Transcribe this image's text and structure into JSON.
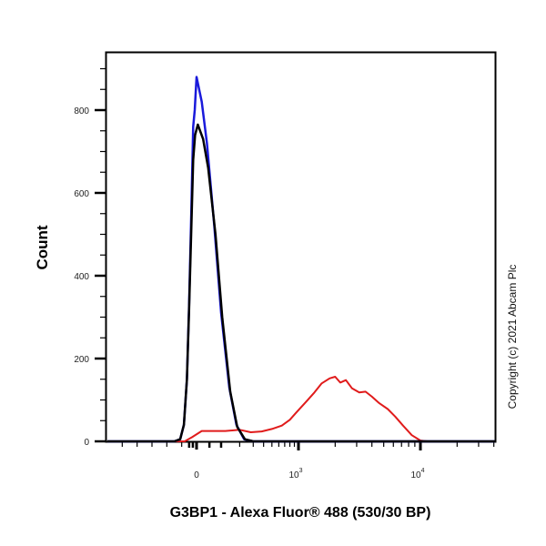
{
  "chart_data": {
    "type": "line",
    "subtype": "flow-cytometry-histogram",
    "title": "",
    "xlabel": "G3BP1 - Alexa Fluor® 488 (530/30 BP)",
    "ylabel": "Count",
    "x_scale": "biexponential",
    "x_tick_labels": [
      "0",
      "10^3",
      "10^4"
    ],
    "y_tick_labels": [
      "0",
      "200",
      "400",
      "600",
      "800"
    ],
    "ylim": [
      0,
      940
    ],
    "grid": false,
    "legend": null,
    "annotation": "Copyright (c) 2021 Abcam Plc",
    "series": [
      {
        "name": "blue-control",
        "color": "#1a1adb",
        "peak_x": "0",
        "peak_count": 880,
        "points": [
          [
            -1200,
            0
          ],
          [
            -300,
            0
          ],
          [
            -220,
            5
          ],
          [
            -170,
            40
          ],
          [
            -130,
            150
          ],
          [
            -100,
            330
          ],
          [
            -70,
            560
          ],
          [
            -45,
            760
          ],
          [
            -25,
            800
          ],
          [
            0,
            880
          ],
          [
            20,
            820
          ],
          [
            40,
            720
          ],
          [
            70,
            520
          ],
          [
            100,
            310
          ],
          [
            140,
            130
          ],
          [
            180,
            40
          ],
          [
            230,
            5
          ],
          [
            300,
            0
          ],
          [
            60000,
            0
          ]
        ]
      },
      {
        "name": "black-control",
        "color": "#000000",
        "peak_x": "0",
        "peak_count": 765,
        "points": [
          [
            -1200,
            0
          ],
          [
            -300,
            0
          ],
          [
            -220,
            5
          ],
          [
            -170,
            40
          ],
          [
            -130,
            150
          ],
          [
            -100,
            320
          ],
          [
            -70,
            520
          ],
          [
            -45,
            680
          ],
          [
            -20,
            740
          ],
          [
            5,
            765
          ],
          [
            25,
            730
          ],
          [
            45,
            660
          ],
          [
            75,
            500
          ],
          [
            105,
            300
          ],
          [
            145,
            120
          ],
          [
            185,
            35
          ],
          [
            235,
            5
          ],
          [
            300,
            0
          ],
          [
            60000,
            0
          ]
        ]
      },
      {
        "name": "red-G3BP1",
        "color": "#e01b1b",
        "peak_x": "~2000",
        "peak_count": 156,
        "points": [
          [
            -1200,
            0
          ],
          [
            -160,
            0
          ],
          [
            -60,
            10
          ],
          [
            20,
            25
          ],
          [
            120,
            25
          ],
          [
            200,
            28
          ],
          [
            280,
            22
          ],
          [
            380,
            24
          ],
          [
            500,
            30
          ],
          [
            650,
            38
          ],
          [
            800,
            52
          ],
          [
            950,
            70
          ],
          [
            1150,
            95
          ],
          [
            1350,
            118
          ],
          [
            1550,
            140
          ],
          [
            1800,
            152
          ],
          [
            2000,
            156
          ],
          [
            2200,
            142
          ],
          [
            2450,
            148
          ],
          [
            2750,
            128
          ],
          [
            3150,
            118
          ],
          [
            3550,
            120
          ],
          [
            4000,
            108
          ],
          [
            4600,
            92
          ],
          [
            5400,
            78
          ],
          [
            6200,
            60
          ],
          [
            7200,
            38
          ],
          [
            8500,
            15
          ],
          [
            10000,
            2
          ],
          [
            11500,
            0
          ],
          [
            60000,
            0
          ]
        ]
      }
    ]
  },
  "axes": {
    "x": {
      "label": "G3BP1 - Alexa Fluor® 488 (530/30 BP)",
      "ticks": [
        {
          "label": "0",
          "base": "0",
          "exp": ""
        },
        {
          "label": "10^3",
          "base": "10",
          "exp": "3"
        },
        {
          "label": "10^4",
          "base": "10",
          "exp": "4"
        }
      ]
    },
    "y": {
      "label": "Count",
      "ticks": [
        "0",
        "200",
        "400",
        "600",
        "800"
      ]
    }
  },
  "copyright": "Copyright (c) 2021 Abcam Plc"
}
